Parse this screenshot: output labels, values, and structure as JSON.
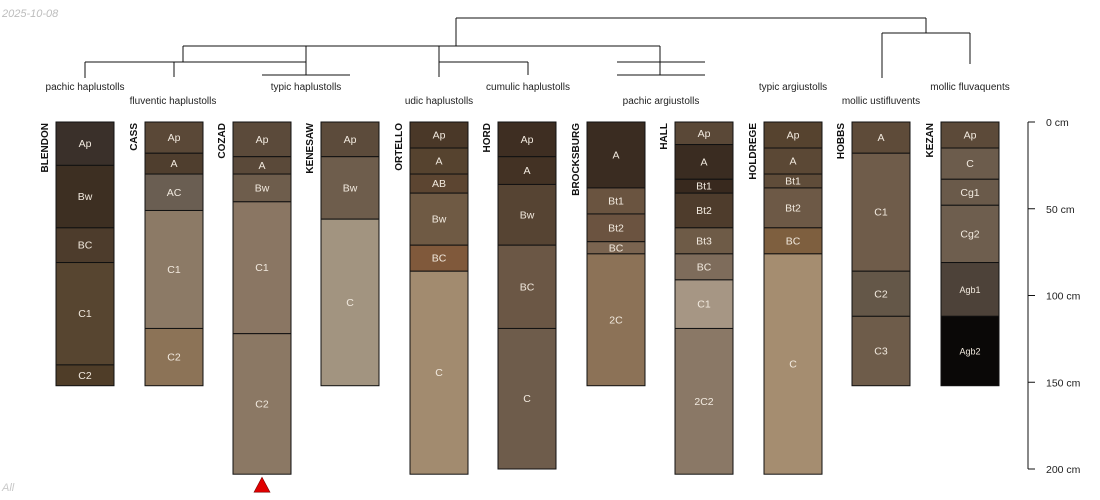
{
  "header": {
    "date": "2025-10-08"
  },
  "footer": {
    "note": "All"
  },
  "depth_axis": {
    "ticks": [
      "0 cm",
      "50 cm",
      "100 cm",
      "150 cm",
      "200 cm"
    ]
  },
  "taxa": [
    "pachic haplustolls",
    "fluventic haplustolls",
    "typic haplustolls",
    "udic haplustolls",
    "cumulic haplustolls",
    "pachic argiustolls",
    "typic argiustolls",
    "mollic ustifluvents",
    "mollic fluvaquents"
  ],
  "profiles": [
    {
      "name": "BLENDON",
      "horizons": [
        {
          "name": "Ap",
          "top": 0,
          "bottom": 25,
          "color": "#3a302a"
        },
        {
          "name": "Bw",
          "top": 25,
          "bottom": 61,
          "color": "#3d2f22"
        },
        {
          "name": "BC",
          "top": 61,
          "bottom": 81,
          "color": "#4d3c2c"
        },
        {
          "name": "C1",
          "top": 81,
          "bottom": 140,
          "color": "#574530"
        },
        {
          "name": "C2",
          "top": 140,
          "bottom": 152,
          "color": "#4f3d28"
        }
      ]
    },
    {
      "name": "CASS",
      "horizons": [
        {
          "name": "Ap",
          "top": 0,
          "bottom": 18,
          "color": "#5a4837"
        },
        {
          "name": "A",
          "top": 18,
          "bottom": 30,
          "color": "#4f3e2e"
        },
        {
          "name": "AC",
          "top": 30,
          "bottom": 51,
          "color": "#6a5e52"
        },
        {
          "name": "C1",
          "top": 51,
          "bottom": 119,
          "color": "#8c7a66"
        },
        {
          "name": "C2",
          "top": 119,
          "bottom": 152,
          "color": "#8c7357"
        }
      ]
    },
    {
      "name": "COZAD",
      "horizons": [
        {
          "name": "Ap",
          "top": 0,
          "bottom": 20,
          "color": "#5b4a3a"
        },
        {
          "name": "A",
          "top": 20,
          "bottom": 30,
          "color": "#5a4939"
        },
        {
          "name": "Bw",
          "top": 30,
          "bottom": 46,
          "color": "#6e5d4c"
        },
        {
          "name": "C1",
          "top": 46,
          "bottom": 122,
          "color": "#8a7663"
        },
        {
          "name": "C2",
          "top": 122,
          "bottom": 203,
          "color": "#8b7864"
        }
      ]
    },
    {
      "name": "KENESAW",
      "horizons": [
        {
          "name": "Ap",
          "top": 0,
          "bottom": 20,
          "color": "#5c4b3b"
        },
        {
          "name": "Bw",
          "top": 20,
          "bottom": 56,
          "color": "#6e5d4c"
        },
        {
          "name": "C",
          "top": 56,
          "bottom": 152,
          "color": "#a29480"
        }
      ]
    },
    {
      "name": "ORTELLO",
      "horizons": [
        {
          "name": "Ap",
          "top": 0,
          "bottom": 15,
          "color": "#4a3828"
        },
        {
          "name": "A",
          "top": 15,
          "bottom": 30,
          "color": "#56432f"
        },
        {
          "name": "AB",
          "top": 30,
          "bottom": 41,
          "color": "#5c4531"
        },
        {
          "name": "Bw",
          "top": 41,
          "bottom": 71,
          "color": "#6f5a44"
        },
        {
          "name": "BC",
          "top": 71,
          "bottom": 86,
          "color": "#80593b"
        },
        {
          "name": "C",
          "top": 86,
          "bottom": 203,
          "color": "#a28b6f"
        }
      ]
    },
    {
      "name": "HORD",
      "horizons": [
        {
          "name": "Ap",
          "top": 0,
          "bottom": 20,
          "color": "#3e2e22"
        },
        {
          "name": "A",
          "top": 20,
          "bottom": 36,
          "color": "#433224"
        },
        {
          "name": "Bw",
          "top": 36,
          "bottom": 71,
          "color": "#564433"
        },
        {
          "name": "BC",
          "top": 71,
          "bottom": 119,
          "color": "#6b5745"
        },
        {
          "name": "C",
          "top": 119,
          "bottom": 200,
          "color": "#6e5c4b"
        }
      ]
    },
    {
      "name": "BROCKSBURG",
      "horizons": [
        {
          "name": "A",
          "top": 0,
          "bottom": 38,
          "color": "#3a2c21"
        },
        {
          "name": "Bt1",
          "top": 38,
          "bottom": 53,
          "color": "#6a5440"
        },
        {
          "name": "Bt2",
          "top": 53,
          "bottom": 69,
          "color": "#6b5340"
        },
        {
          "name": "BC",
          "top": 69,
          "bottom": 76,
          "color": "#7a6450"
        },
        {
          "name": "2C",
          "top": 76,
          "bottom": 152,
          "color": "#8c7257"
        }
      ]
    },
    {
      "name": "HALL",
      "horizons": [
        {
          "name": "Ap",
          "top": 0,
          "bottom": 13,
          "color": "#5a4837"
        },
        {
          "name": "A",
          "top": 13,
          "bottom": 33,
          "color": "#3a2c21"
        },
        {
          "name": "Bt1",
          "top": 33,
          "bottom": 41,
          "color": "#38291e"
        },
        {
          "name": "Bt2",
          "top": 41,
          "bottom": 61,
          "color": "#4e3c2c"
        },
        {
          "name": "Bt3",
          "top": 61,
          "bottom": 76,
          "color": "#6e5b47"
        },
        {
          "name": "BC",
          "top": 76,
          "bottom": 91,
          "color": "#7e6c5b"
        },
        {
          "name": "C1",
          "top": 91,
          "bottom": 119,
          "color": "#a69684"
        },
        {
          "name": "2C2",
          "top": 119,
          "bottom": 203,
          "color": "#8a7866"
        }
      ]
    },
    {
      "name": "HOLDREGE",
      "horizons": [
        {
          "name": "Ap",
          "top": 0,
          "bottom": 15,
          "color": "#56432f"
        },
        {
          "name": "A",
          "top": 15,
          "bottom": 30,
          "color": "#5b4835"
        },
        {
          "name": "Bt1",
          "top": 30,
          "bottom": 38,
          "color": "#5f4c39"
        },
        {
          "name": "Bt2",
          "top": 38,
          "bottom": 61,
          "color": "#6d5946"
        },
        {
          "name": "BC",
          "top": 61,
          "bottom": 76,
          "color": "#7e5f3f"
        },
        {
          "name": "C",
          "top": 76,
          "bottom": 203,
          "color": "#a58d70"
        }
      ]
    },
    {
      "name": "HOBBS",
      "horizons": [
        {
          "name": "A",
          "top": 0,
          "bottom": 18,
          "color": "#5e4b39"
        },
        {
          "name": "C1",
          "top": 18,
          "bottom": 86,
          "color": "#6f5c4a"
        },
        {
          "name": "C2",
          "top": 86,
          "bottom": 112,
          "color": "#645748"
        },
        {
          "name": "C3",
          "top": 112,
          "bottom": 152,
          "color": "#6e5c4a"
        }
      ]
    },
    {
      "name": "KEZAN",
      "horizons": [
        {
          "name": "Ap",
          "top": 0,
          "bottom": 15,
          "color": "#5c4a39"
        },
        {
          "name": "C",
          "top": 15,
          "bottom": 33,
          "color": "#6c5c4c"
        },
        {
          "name": "Cg1",
          "top": 33,
          "bottom": 48,
          "color": "#6a5a4a"
        },
        {
          "name": "Cg2",
          "top": 48,
          "bottom": 81,
          "color": "#6e5e4e"
        },
        {
          "name": "Agb1",
          "top": 81,
          "bottom": 112,
          "color": "#4d4239"
        },
        {
          "name": "Agb2",
          "top": 112,
          "bottom": 152,
          "color": "#0a0807"
        }
      ]
    }
  ],
  "truncation_marker": {
    "profile": "COZAD",
    "color": "#e00000"
  },
  "colors": {
    "border": "#111111",
    "horizon_label": "#f2eadf",
    "text": "#222222",
    "lines": "#111111"
  }
}
